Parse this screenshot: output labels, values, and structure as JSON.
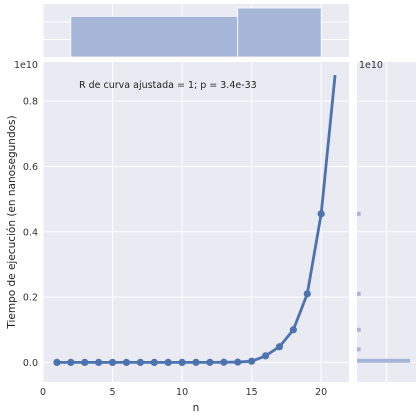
{
  "chart_data": {
    "type": "scatter",
    "style": "seaborn jointplot (regression fit + marginal histograms)",
    "xlabel": "n",
    "ylabel": "Tiempo de ejecución (en nanosegundos)",
    "y_scale_label": "1e10",
    "annotation": "R de curva ajustada = 1; p = 3.4e-33",
    "xlim": [
      0,
      22
    ],
    "ylim": [
      -0.06,
      0.92
    ],
    "x_ticks": [
      0,
      5,
      10,
      15,
      20
    ],
    "y_ticks": [
      0.0,
      0.2,
      0.4,
      0.6,
      0.8
    ],
    "series": [
      {
        "kind": "points",
        "x": [
          1,
          2,
          3,
          4,
          5,
          6,
          7,
          8,
          9,
          10,
          11,
          12,
          13,
          14,
          15,
          16,
          17,
          18,
          19,
          20
        ],
        "y": [
          0.0,
          0.0,
          0.0,
          0.0,
          0.0,
          0.0,
          0.0,
          0.0,
          0.0,
          0.0,
          0.0001,
          0.0002,
          0.0005,
          0.0011,
          0.0035,
          0.02,
          0.048,
          0.1,
          0.21,
          0.455
        ]
      },
      {
        "kind": "fit_curve",
        "x": [
          1,
          2,
          3,
          4,
          5,
          6,
          7,
          8,
          9,
          10,
          11,
          12,
          13,
          14,
          15,
          16,
          17,
          18,
          19,
          20,
          21
        ],
        "y": [
          0.0,
          0.0,
          0.0,
          0.0,
          0.0,
          0.0,
          0.0,
          0.0,
          0.0,
          0.0,
          0.0001,
          0.0002,
          0.0005,
          0.0011,
          0.0035,
          0.02,
          0.048,
          0.1,
          0.21,
          0.455,
          0.88
        ]
      }
    ],
    "top_marginal": {
      "bins": [
        {
          "x0": 2,
          "x1": 14,
          "count": 0.83
        },
        {
          "x0": 14,
          "x1": 20,
          "count": 1.0
        }
      ]
    },
    "right_marginal": {
      "bins": [
        {
          "y": 0.005,
          "count": 1.0
        },
        {
          "y": 0.04,
          "count": 0.07
        },
        {
          "y": 0.1,
          "count": 0.07
        },
        {
          "y": 0.21,
          "count": 0.07
        },
        {
          "y": 0.455,
          "count": 0.07
        }
      ]
    },
    "colors": {
      "line": "#4c72b0",
      "hist": "#a5b6d8",
      "panel_bg": "#eaeaf2",
      "grid": "#ffffff"
    }
  }
}
